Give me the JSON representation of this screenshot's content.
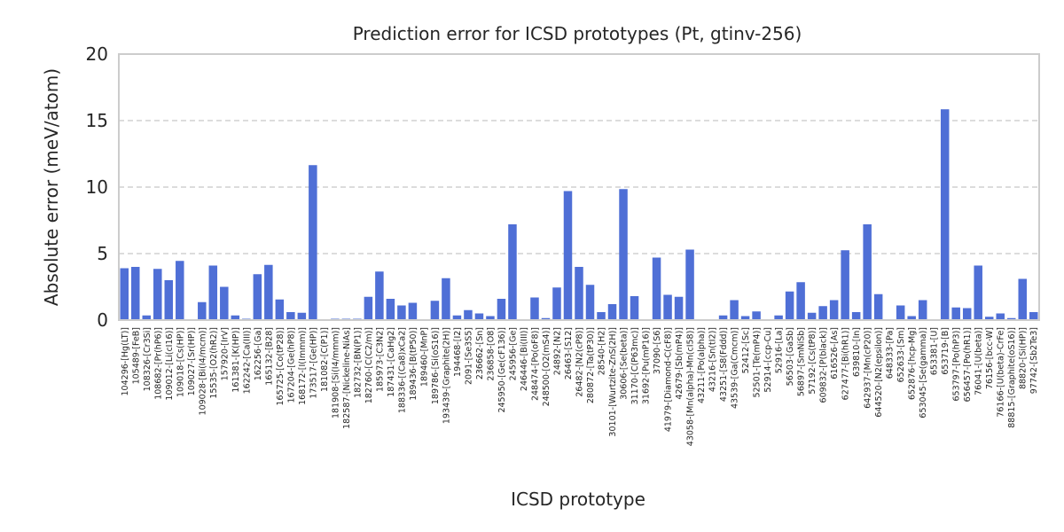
{
  "chart_data": {
    "type": "bar",
    "title": "Prediction error for ICSD prototypes (Pt, gtinv-256)",
    "xlabel": "ICSD prototype",
    "ylabel": "Absolute error (meV/atom)",
    "ylim": [
      0,
      20
    ],
    "yticks": [
      0,
      5,
      10,
      15,
      20
    ],
    "grid": "y-dashed",
    "bar_color": "#4f6fd6",
    "categories": [
      "104296-[Hg(LT)]",
      "105489-[FeB]",
      "108326-[Cr3Si]",
      "108682-[Pr(hP6)]",
      "109012-[Li(cI16)]",
      "109018-[Cs(HP)]",
      "109027-[Sr(HP)]",
      "109028-[Bi(I4/mcm)]",
      "15535-[O2(hR2)]",
      "157920-[IrV]",
      "161381-[K(HP)]",
      "162242-[Ca(III)]",
      "162256-[Ga]",
      "165132-[B28]",
      "165725-[Co(tP28)]",
      "167204-[Ge(hP8)]",
      "168172-[I(Immm)]",
      "173517-[Ge(HP)]",
      "181082-[C(P1)]",
      "181908-[Si(I4/mmm)]",
      "182587-[Nickeline-NiAs]",
      "182732-[BN(P1)]",
      "182760-[C(C2/m)]",
      "185973-[C3N2]",
      "187431-[CaHg2]",
      "188336-[(Ca8)xCa2]",
      "189436-[B(tP50)]",
      "189460-[MnP]",
      "189786-[Si(oS16)]",
      "193439-[Graphite(2H)]",
      "194468-[I2]",
      "2091-[Se3S5]",
      "236662-[Sn]",
      "236858-[O8]",
      "245950-[Ge(cF136)]",
      "245956-[Ge]",
      "246446-[Bi(III)]",
      "248474-[Po(oF8)]",
      "248500-[O2(mS4)]",
      "24892-[N2]",
      "26463-[S12]",
      "26482-[N2(cP8)]",
      "280872-[Ta(tP30)]",
      "28540-[H2]",
      "30101-[Wurtzite-ZnS(2H)]",
      "30606-[Se(beta)]",
      "31170-[C(P63mc)]",
      "31692-[Pu(mP16)]",
      "37090-[S6]",
      "41979-[Diamond-C(cF8)]",
      "42679-[Sb(mP4)]",
      "43058-[Mn(alpha)-Mn(cI58)]",
      "43211-[Po(alpha)]",
      "43216-[Sn(tI2)]",
      "43251-[S8(Fddd)]",
      "43539-[Ga(Cmcm)]",
      "52412-[Sc]",
      "52501-[Te(mP4)]",
      "52914-[ccp-Cu]",
      "52916-[La]",
      "56503-[GaSb]",
      "56897-[SmNiSb]",
      "57192-[Cs(tP8)]",
      "609832-[P(black)]",
      "616526-[As]",
      "627477-[Bi(hR1)]",
      "639810-[In]",
      "642937-[Mn(cP20)]",
      "644520-[N2(epsilon)]",
      "648333-[Pa]",
      "652633-[Sm]",
      "652876-[hcp-Mg]",
      "653045-[Se(gamma)]",
      "653381-[U]",
      "653719-[B]",
      "653797-[Po(hP3)]",
      "656457-[Po(hR1)]",
      "76041-[U(beta)]",
      "76156-[bcc-W]",
      "76166-[U(beta)-CrFe]",
      "88815-[Graphite(oS16)]",
      "88820-[Si(HP)]",
      "97742-[Sb2Te3]"
    ],
    "values": [
      3.9,
      4.0,
      0.35,
      3.85,
      3.0,
      4.45,
      0.05,
      1.35,
      4.1,
      2.5,
      0.35,
      0.1,
      3.45,
      4.15,
      1.55,
      0.6,
      0.55,
      11.65,
      0.05,
      0.1,
      0.1,
      0.1,
      1.75,
      3.65,
      1.6,
      1.1,
      1.3,
      0.05,
      1.45,
      3.15,
      0.35,
      0.75,
      0.5,
      0.3,
      1.6,
      7.2,
      0.05,
      1.7,
      0.15,
      2.45,
      9.7,
      4.0,
      2.65,
      0.6,
      1.2,
      9.85,
      1.8,
      0.05,
      4.7,
      1.9,
      1.75,
      5.3,
      0.05,
      0.05,
      0.35,
      1.5,
      0.3,
      0.65,
      0.05,
      0.35,
      2.15,
      2.85,
      0.55,
      1.05,
      1.5,
      5.25,
      0.6,
      7.2,
      1.95,
      0.05,
      1.1,
      0.3,
      1.5,
      0.05,
      15.85,
      0.95,
      0.9,
      4.1,
      0.25,
      0.5,
      0.15,
      3.1,
      0.6
    ]
  }
}
